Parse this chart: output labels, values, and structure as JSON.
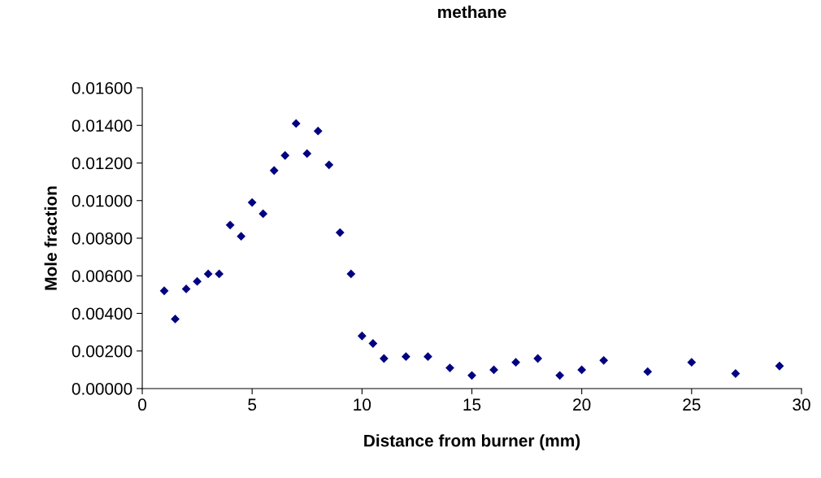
{
  "chart_data": {
    "type": "scatter",
    "title": "methane",
    "xlabel": "Distance from burner (mm)",
    "ylabel": "Mole fraction",
    "x": [
      1,
      1.5,
      2,
      2.5,
      3,
      3.5,
      4,
      4.5,
      5,
      5.5,
      6,
      6.5,
      7,
      7.5,
      8,
      8.5,
      9,
      9.5,
      10,
      10.5,
      11,
      12,
      13,
      14,
      15,
      16,
      17,
      18,
      19,
      20,
      21,
      23,
      25,
      27,
      29
    ],
    "values": [
      0.0052,
      0.0037,
      0.0053,
      0.0057,
      0.0061,
      0.0061,
      0.0087,
      0.0081,
      0.0099,
      0.0093,
      0.0116,
      0.0124,
      0.0141,
      0.0125,
      0.0137,
      0.0119,
      0.0083,
      0.0061,
      0.0028,
      0.0024,
      0.0016,
      0.0017,
      0.0017,
      0.0011,
      0.0007,
      0.001,
      0.0014,
      0.0016,
      0.0007,
      0.001,
      0.0015,
      0.0009,
      0.0014,
      0.0008,
      0.0012
    ],
    "color": "#000080",
    "marker": "diamond",
    "grid": false,
    "xlim": [
      0,
      30
    ],
    "xticks": [
      0,
      5,
      10,
      15,
      20,
      25,
      30
    ],
    "ylim": [
      0,
      0.016
    ],
    "yticks": [
      {
        "value": 0,
        "label": "0.00000"
      },
      {
        "value": 0.002,
        "label": "0.00200"
      },
      {
        "value": 0.004,
        "label": "0.00400"
      },
      {
        "value": 0.006,
        "label": "0.00600"
      },
      {
        "value": 0.008,
        "label": "0.00800"
      },
      {
        "value": 0.01,
        "label": "0.01000"
      },
      {
        "value": 0.012,
        "label": "0.01200"
      },
      {
        "value": 0.014,
        "label": "0.01400"
      },
      {
        "value": 0.016,
        "label": "0.01600"
      }
    ]
  }
}
